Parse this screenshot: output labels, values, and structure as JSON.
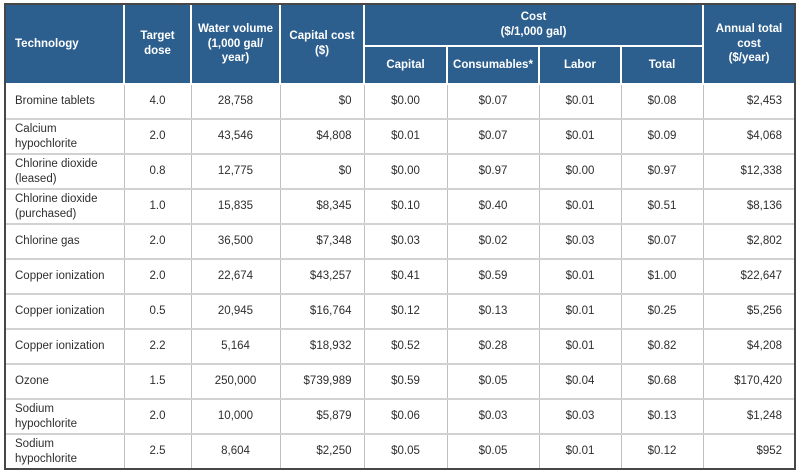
{
  "colors": {
    "header_bg": "#2d5f8e",
    "header_text": "#ffffff",
    "body_text": "#2e2e2e",
    "row_line": "#d2d2d2",
    "column_line": "#bfbfbf",
    "outer_border": "#474747"
  },
  "table": {
    "column_keys": [
      "technology",
      "target-dose",
      "water-volume",
      "capital-cost",
      "cost-capital",
      "cost-consumables",
      "cost-labor",
      "cost-total",
      "annual-total-cost"
    ],
    "headers": {
      "technology": "Technology",
      "target_dose": "Target\ndose",
      "water_volume": "Water volume\n(1,000 gal/\nyear)",
      "capital_cost": "Capital cost\n($)",
      "cost_group": "Cost\n($/1,000 gal)",
      "cost_capital": "Capital",
      "cost_consumables": "Consumables*",
      "cost_labor": "Labor",
      "cost_total": "Total",
      "annual_total": "Annual total\ncost\n($/year)"
    },
    "rows": [
      [
        "Bromine tablets",
        "4.0",
        "28,758",
        "$0",
        "$0.00",
        "$0.07",
        "$0.01",
        "$0.08",
        "$2,453"
      ],
      [
        "Calcium hypochlorite",
        "2.0",
        "43,546",
        "$4,808",
        "$0.01",
        "$0.07",
        "$0.01",
        "$0.09",
        "$4,068"
      ],
      [
        "Chlorine dioxide (leased)",
        "0.8",
        "12,775",
        "$0",
        "$0.00",
        "$0.97",
        "$0.00",
        "$0.97",
        "$12,338"
      ],
      [
        "Chlorine dioxide (purchased)",
        "1.0",
        "15,835",
        "$8,345",
        "$0.10",
        "$0.40",
        "$0.01",
        "$0.51",
        "$8,136"
      ],
      [
        "Chlorine gas",
        "2.0",
        "36,500",
        "$7,348",
        "$0.03",
        "$0.02",
        "$0.03",
        "$0.07",
        "$2,802"
      ],
      [
        "Copper ionization",
        "2.0",
        "22,674",
        "$43,257",
        "$0.41",
        "$0.59",
        "$0.01",
        "$1.00",
        "$22,647"
      ],
      [
        "Copper ionization",
        "0.5",
        "20,945",
        "$16,764",
        "$0.12",
        "$0.13",
        "$0.01",
        "$0.25",
        "$5,256"
      ],
      [
        "Copper ionization",
        "2.2",
        "5,164",
        "$18,932",
        "$0.52",
        "$0.28",
        "$0.01",
        "$0.82",
        "$4,208"
      ],
      [
        "Ozone",
        "1.5",
        "250,000",
        "$739,989",
        "$0.59",
        "$0.05",
        "$0.04",
        "$0.68",
        "$170,420"
      ],
      [
        "Sodium hypochlorite",
        "2.0",
        "10,000",
        "$5,879",
        "$0.06",
        "$0.03",
        "$0.03",
        "$0.13",
        "$1,248"
      ],
      [
        "Sodium hypochlorite",
        "2.5",
        "8,604",
        "$2,250",
        "$0.05",
        "$0.05",
        "$0.01",
        "$0.12",
        "$952"
      ]
    ]
  }
}
